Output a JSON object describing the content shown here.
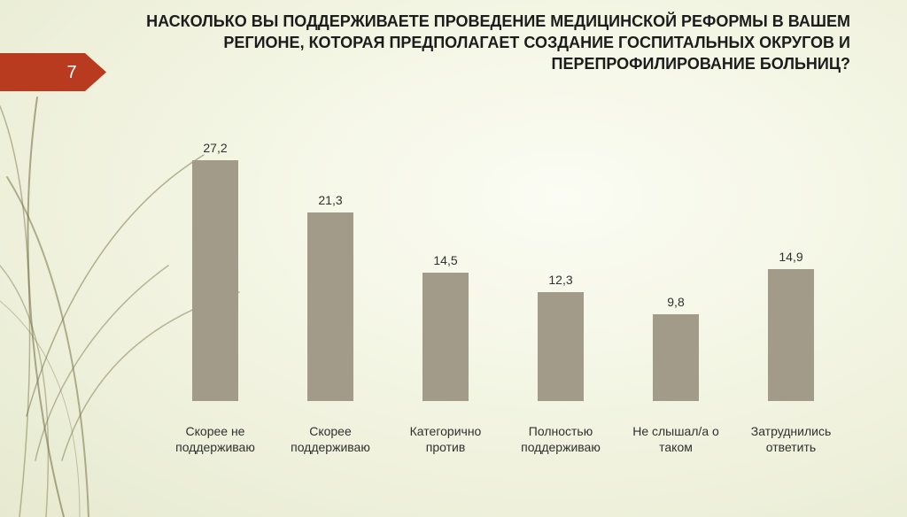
{
  "slide": {
    "number": "7"
  },
  "title": {
    "lines": [
      "НАСКОЛЬКО ВЫ ПОДДЕРЖИВАЕТЕ ПРОВЕДЕНИЕ МЕДИЦИНСКОЙ РЕФОРМЫ В ВАШЕМ",
      "РЕГИОНЕ, КОТОРАЯ ПРЕДПОЛАГАЕТ СОЗДАНИЕ ГОСПИТАЛЬНЫХ ОКРУГОВ И",
      "ПЕРЕПРОФИЛИРОВАНИЕ БОЛЬНИЦ?"
    ]
  },
  "colors": {
    "bar": "#a39b8a",
    "slide_number_bg": "#b93b1f",
    "decor_line": "#6d6a3c"
  },
  "chart_data": {
    "type": "bar",
    "title": "НАСКОЛЬКО ВЫ ПОДДЕРЖИВАЕТЕ ПРОВЕДЕНИЕ МЕДИЦИНСКОЙ РЕФОРМЫ В ВАШЕМ РЕГИОНЕ, КОТОРАЯ ПРЕДПОЛАГАЕТ СОЗДАНИЕ ГОСПИТАЛЬНЫХ ОКРУГОВ И ПЕРЕПРОФИЛИРОВАНИЕ БОЛЬНИЦ?",
    "categories": [
      [
        "Скорее не",
        "поддерживаю"
      ],
      [
        "Скорее",
        "поддерживаю"
      ],
      [
        "Категорично",
        "против"
      ],
      [
        "Полностью",
        "поддерживаю"
      ],
      [
        "Не слышал/а о",
        "таком"
      ],
      [
        "Затруднились",
        "ответить"
      ]
    ],
    "values": [
      27.2,
      21.3,
      14.5,
      12.3,
      9.8,
      14.9
    ],
    "value_labels": [
      "27,2",
      "21,3",
      "14,5",
      "12,3",
      "9,8",
      "14,9"
    ],
    "xlabel": "",
    "ylabel": "",
    "ylim": [
      0,
      30
    ],
    "grid": false,
    "legend": "none"
  }
}
